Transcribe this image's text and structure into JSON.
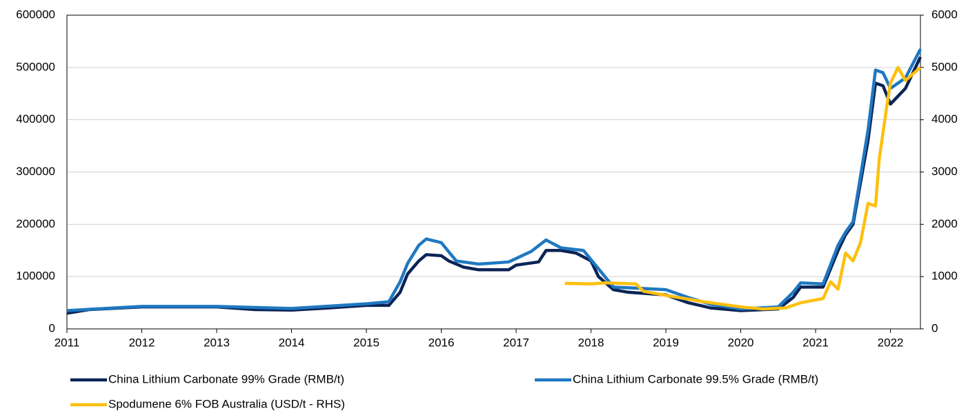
{
  "chart_data": {
    "type": "line",
    "xlim": [
      2011,
      2022.4
    ],
    "xticks": [
      2011,
      2012,
      2013,
      2014,
      2015,
      2016,
      2017,
      2018,
      2019,
      2020,
      2021,
      2022
    ],
    "ylim": [
      0,
      600000
    ],
    "yticks": [
      0,
      100000,
      200000,
      300000,
      400000,
      500000,
      600000
    ],
    "y2lim": [
      0,
      6000
    ],
    "y2ticks": [
      0,
      1000,
      2000,
      3000,
      4000,
      5000,
      6000
    ],
    "grid": true,
    "legend": "bottom",
    "series": [
      {
        "name": "China Lithium Carbonate 99% Grade (RMB/t)",
        "color": "#0b2456",
        "x": [
          2011,
          2011.3,
          2012,
          2013,
          2013.5,
          2014,
          2014.5,
          2015,
          2015.3,
          2015.45,
          2015.55,
          2015.7,
          2015.8,
          2016,
          2016.1,
          2016.3,
          2016.5,
          2016.9,
          2017,
          2017.3,
          2017.4,
          2017.6,
          2017.8,
          2018,
          2018.1,
          2018.3,
          2018.5,
          2019,
          2019.3,
          2019.6,
          2020,
          2020.5,
          2020.7,
          2020.8,
          2021.1,
          2021.3,
          2021.4,
          2021.5,
          2021.7,
          2021.8,
          2021.9,
          2022,
          2022.2,
          2022.4
        ],
        "values": [
          30000,
          37000,
          42000,
          42000,
          37000,
          36000,
          40000,
          45000,
          45000,
          70000,
          105000,
          130000,
          142000,
          140000,
          130000,
          118000,
          113000,
          113000,
          122000,
          128000,
          150000,
          150000,
          145000,
          130000,
          100000,
          75000,
          70000,
          65000,
          50000,
          40000,
          35000,
          38000,
          60000,
          80000,
          80000,
          150000,
          180000,
          200000,
          360000,
          470000,
          465000,
          430000,
          460000,
          520000
        ]
      },
      {
        "name": "China Lithium Carbonate 99.5% Grade (RMB/t)",
        "color": "#1f78c1",
        "x": [
          2011,
          2012,
          2013,
          2014,
          2015,
          2015.3,
          2015.45,
          2015.55,
          2015.7,
          2015.8,
          2016,
          2016.2,
          2016.5,
          2016.9,
          2017.2,
          2017.4,
          2017.6,
          2017.9,
          2018.1,
          2018.3,
          2018.6,
          2019,
          2019.3,
          2019.6,
          2020,
          2020.5,
          2020.7,
          2020.8,
          2021.1,
          2021.3,
          2021.4,
          2021.5,
          2021.7,
          2021.8,
          2021.9,
          2022,
          2022.2,
          2022.4
        ],
        "values": [
          35000,
          43000,
          43000,
          39000,
          48000,
          52000,
          90000,
          125000,
          160000,
          172000,
          165000,
          130000,
          124000,
          128000,
          148000,
          170000,
          155000,
          150000,
          115000,
          80000,
          78000,
          75000,
          60000,
          47000,
          38000,
          42000,
          70000,
          88000,
          86000,
          160000,
          185000,
          205000,
          380000,
          495000,
          490000,
          460000,
          480000,
          535000
        ]
      },
      {
        "name": "Spodumene 6% FOB Australia (USD/t - RHS)",
        "color": "#fdc010",
        "axis": "y2",
        "x": [
          2017.65,
          2018,
          2018.2,
          2018.6,
          2018.7,
          2019,
          2019.5,
          2020,
          2020.3,
          2020.6,
          2020.8,
          2021.1,
          2021.2,
          2021.3,
          2021.4,
          2021.5,
          2021.6,
          2021.7,
          2021.8,
          2021.85,
          2021.95,
          2022,
          2022.1,
          2022.2,
          2022.4
        ],
        "values": [
          870,
          860,
          880,
          860,
          720,
          640,
          520,
          420,
          380,
          400,
          500,
          580,
          900,
          760,
          1450,
          1300,
          1650,
          2400,
          2350,
          3250,
          4250,
          4700,
          5000,
          4750,
          5000
        ]
      }
    ]
  }
}
